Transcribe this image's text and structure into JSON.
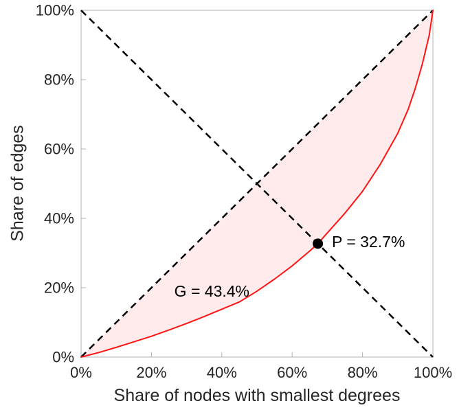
{
  "figure": {
    "background": "#ffffff"
  },
  "chart_data": {
    "type": "line",
    "title": "",
    "xlabel": "Share of nodes with smallest degrees",
    "ylabel": "Share of edges",
    "xlim": [
      0,
      100
    ],
    "ylim": [
      0,
      100
    ],
    "xticks": [
      0,
      20,
      40,
      60,
      80,
      100
    ],
    "yticks": [
      0,
      20,
      40,
      60,
      80,
      100
    ],
    "tick_suffix": "%",
    "grid": false,
    "legend": "none",
    "box_color": "#b0b0b0",
    "tick_label_color": "#262626",
    "series": [
      {
        "name": "lorenz-curve",
        "color": "#ff1414",
        "width": 2,
        "style": "solid",
        "x": [
          0,
          5,
          10,
          15,
          20,
          25,
          30,
          35,
          40,
          45,
          50,
          55,
          60,
          65,
          67.3,
          70,
          75,
          80,
          85,
          90,
          93,
          95,
          97,
          99,
          100
        ],
        "y": [
          0,
          1.3,
          2.8,
          4.4,
          6.0,
          7.8,
          9.7,
          11.7,
          13.8,
          15.9,
          19.0,
          22.5,
          26.3,
          30.6,
          32.7,
          35.8,
          41.5,
          47.8,
          55.5,
          64.5,
          71.5,
          77.5,
          84.5,
          93,
          100
        ]
      },
      {
        "name": "equality-diagonal",
        "color": "#000000",
        "width": 2.5,
        "style": "dashed",
        "x": [
          0,
          100
        ],
        "y": [
          0,
          100
        ]
      },
      {
        "name": "anti-diagonal",
        "color": "#000000",
        "width": 2.5,
        "style": "dashed",
        "x": [
          0,
          100
        ],
        "y": [
          100,
          0
        ]
      }
    ],
    "fill_between": {
      "upper": "equality-diagonal",
      "lower": "lorenz-curve",
      "color": "rgba(255,0,0,0.08)"
    },
    "point": {
      "x": 67.3,
      "y": 32.7,
      "radius": 7.5,
      "color": "#000000",
      "label": "P = 32.7%"
    },
    "annotations": [
      {
        "name": "annotation-p",
        "text": "P = 32.7%",
        "x": 71.3,
        "y": 31.7,
        "anchor": "start",
        "font_size": 23
      },
      {
        "name": "annotation-g",
        "text": "G = 43.4%",
        "x": 26.5,
        "y": 17.4,
        "anchor": "start",
        "font_size": 23
      }
    ]
  }
}
